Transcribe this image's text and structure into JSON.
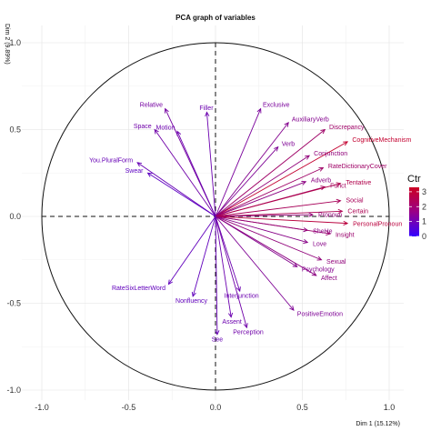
{
  "chart_data": {
    "type": "scatter",
    "subtype": "pca-correlation-circle",
    "title": "PCA graph of variables",
    "xlabel": "Dim 1 (15.12%)",
    "ylabel": "Dim 2 (9.89%)",
    "xlim": [
      -1.05,
      1.05
    ],
    "ylim": [
      -1.03,
      1.05
    ],
    "x_ticks": [
      "-1.0",
      "-0.5",
      "0.0",
      "0.5",
      "1.0"
    ],
    "y_ticks": [
      "-1.0",
      "-0.5",
      "0.0",
      "0.5",
      "1.0"
    ],
    "grid": true,
    "unit_circle": true,
    "color_scale": {
      "title": "Ctr",
      "ticks": [
        "3",
        "2",
        "1",
        "0"
      ],
      "low_color": "#3300ff",
      "high_color": "#cc0022"
    },
    "variables": [
      {
        "name": "Relative",
        "x": -0.29,
        "y": 0.62,
        "ctr": 1.4
      },
      {
        "name": "Filler",
        "x": -0.05,
        "y": 0.6,
        "ctr": 1.2
      },
      {
        "name": "Exclusive",
        "x": 0.26,
        "y": 0.62,
        "ctr": 1.5
      },
      {
        "name": "Space",
        "x": -0.35,
        "y": 0.5,
        "ctr": 1.3
      },
      {
        "name": "Motion",
        "x": -0.22,
        "y": 0.49,
        "ctr": 1.2
      },
      {
        "name": "AuxiliaryVerb",
        "x": 0.42,
        "y": 0.54,
        "ctr": 1.7
      },
      {
        "name": "Discrepancy",
        "x": 0.63,
        "y": 0.5,
        "ctr": 2.3
      },
      {
        "name": "CognitiveMechanism",
        "x": 0.76,
        "y": 0.43,
        "ctr": 3.1
      },
      {
        "name": "You.PluralForm",
        "x": -0.45,
        "y": 0.31,
        "ctr": 1.1
      },
      {
        "name": "Swear",
        "x": -0.39,
        "y": 0.25,
        "ctr": 0.9
      },
      {
        "name": "Verb",
        "x": 0.36,
        "y": 0.4,
        "ctr": 1.6
      },
      {
        "name": "Conjunction",
        "x": 0.54,
        "y": 0.35,
        "ctr": 2.0
      },
      {
        "name": "RateDictionaryCover",
        "x": 0.62,
        "y": 0.28,
        "ctr": 2.3
      },
      {
        "name": "Adverb",
        "x": 0.52,
        "y": 0.2,
        "ctr": 1.9
      },
      {
        "name": "Funct",
        "x": 0.63,
        "y": 0.17,
        "ctr": 2.4
      },
      {
        "name": "Tentative",
        "x": 0.72,
        "y": 0.19,
        "ctr": 2.7
      },
      {
        "name": "Social",
        "x": 0.72,
        "y": 0.09,
        "ctr": 2.5
      },
      {
        "name": "Certain",
        "x": 0.73,
        "y": 0.03,
        "ctr": 2.6
      },
      {
        "name": "Pronoun",
        "x": 0.56,
        "y": 0.01,
        "ctr": 2.0
      },
      {
        "name": "PersonalPronoun",
        "x": 0.76,
        "y": -0.04,
        "ctr": 2.9
      },
      {
        "name": "SheHe",
        "x": 0.53,
        "y": -0.08,
        "ctr": 1.9
      },
      {
        "name": "Insight",
        "x": 0.66,
        "y": -0.1,
        "ctr": 2.2
      },
      {
        "name": "Love",
        "x": 0.53,
        "y": -0.15,
        "ctr": 1.8
      },
      {
        "name": "Sexual",
        "x": 0.61,
        "y": -0.25,
        "ctr": 2.0
      },
      {
        "name": "Psychology",
        "x": 0.47,
        "y": -0.29,
        "ctr": 1.7
      },
      {
        "name": "Affect",
        "x": 0.58,
        "y": -0.34,
        "ctr": 1.9
      },
      {
        "name": "RateSixLetterWord",
        "x": -0.27,
        "y": -0.39,
        "ctr": 1.0
      },
      {
        "name": "Nonfluency",
        "x": -0.13,
        "y": -0.46,
        "ctr": 1.0
      },
      {
        "name": "Interjunction",
        "x": 0.14,
        "y": -0.43,
        "ctr": 1.2
      },
      {
        "name": "PositiveEmotion",
        "x": 0.45,
        "y": -0.54,
        "ctr": 1.6
      },
      {
        "name": "Assent",
        "x": 0.09,
        "y": -0.58,
        "ctr": 1.2
      },
      {
        "name": "Perception",
        "x": 0.18,
        "y": -0.64,
        "ctr": 1.3
      },
      {
        "name": "See",
        "x": 0.01,
        "y": -0.68,
        "ctr": 1.1
      }
    ]
  }
}
